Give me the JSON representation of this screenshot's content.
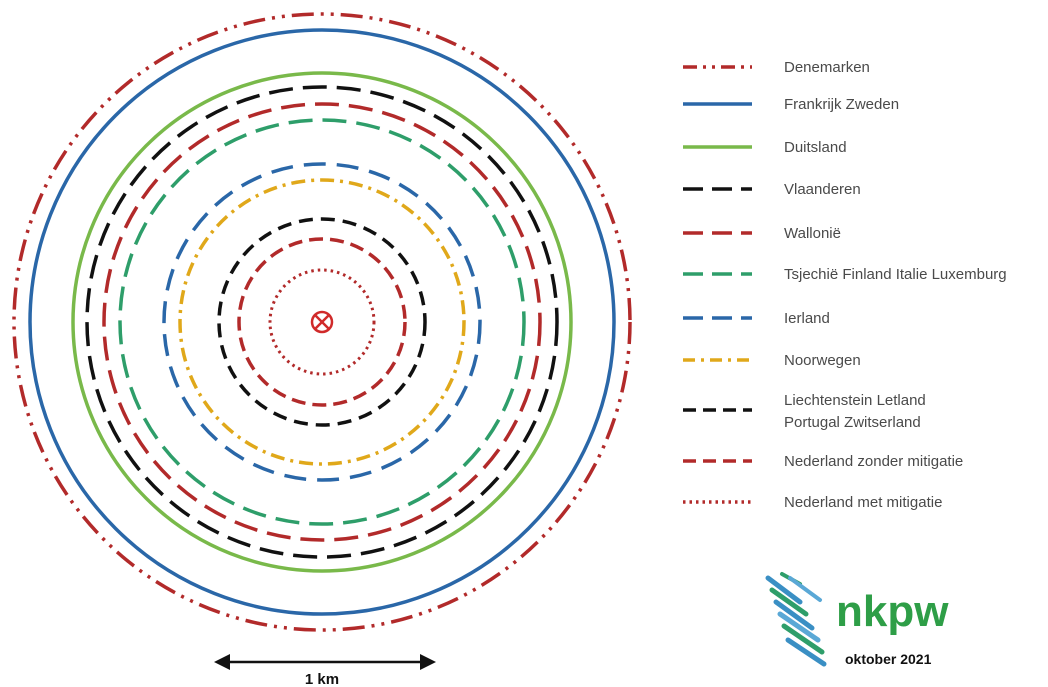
{
  "legend": [
    {
      "id": "dk",
      "label": [
        "Denemarken"
      ],
      "color": "#b22a2a",
      "style": "dash-dot-dot"
    },
    {
      "id": "fr",
      "label": [
        "Frankrijk Zweden"
      ],
      "color": "#2a67a8",
      "style": "solid"
    },
    {
      "id": "de",
      "label": [
        "Duitsland"
      ],
      "color": "#79b94a",
      "style": "solid"
    },
    {
      "id": "vl",
      "label": [
        "Vlaanderen"
      ],
      "color": "#111111",
      "style": "long-dash"
    },
    {
      "id": "wa",
      "label": [
        "Wallonië"
      ],
      "color": "#b22a2a",
      "style": "long-dash"
    },
    {
      "id": "cz",
      "label": [
        "Tsjechië Finland Italie Luxemburg"
      ],
      "color": "#2e9e6a",
      "style": "long-dash"
    },
    {
      "id": "ie",
      "label": [
        "Ierland"
      ],
      "color": "#2a67a8",
      "style": "long-dash"
    },
    {
      "id": "no",
      "label": [
        "Noorwegen"
      ],
      "color": "#e0a81a",
      "style": "dash-dot"
    },
    {
      "id": "li",
      "label": [
        "Liechtenstein Letland",
        "Portugal Zwitserland"
      ],
      "color": "#111111",
      "style": "medium-dash"
    },
    {
      "id": "nl1",
      "label": [
        "Nederland zonder mitigatie"
      ],
      "color": "#b22a2a",
      "style": "medium-dash"
    },
    {
      "id": "nl2",
      "label": [
        "Nederland met mitigatie"
      ],
      "color": "#b22a2a",
      "style": "dotted"
    }
  ],
  "scale_bar": {
    "label": "1 km"
  },
  "logo": {
    "text": "nkpw",
    "date": "oktober 2021"
  },
  "colors": {
    "logo_green": "#2e9e47",
    "logo_blue": "#3a8fc4",
    "center_red": "#d02a2a"
  }
}
